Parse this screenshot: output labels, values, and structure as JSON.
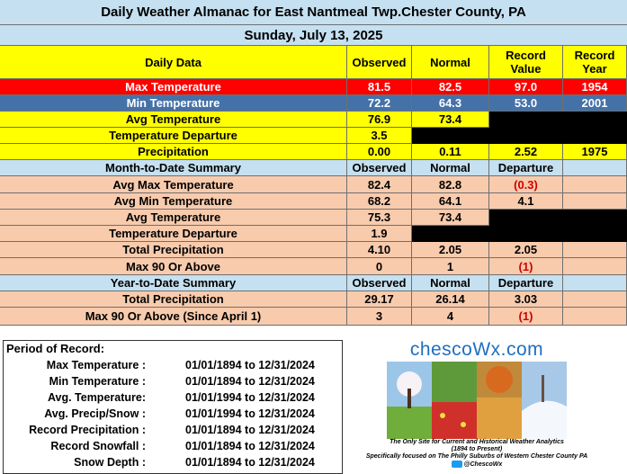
{
  "header": {
    "title": "Daily Weather Almanac for East Nantmeal Twp.Chester County, PA",
    "date": "Sunday, July 13, 2025"
  },
  "daily": {
    "columns": [
      "Daily Data",
      "Observed",
      "Normal",
      "Record Value",
      "Record Year"
    ],
    "rows": [
      {
        "label": "Max Temperature",
        "observed": "81.5",
        "normal": "82.5",
        "record_value": "97.0",
        "record_year": "1954"
      },
      {
        "label": "Min Temperature",
        "observed": "72.2",
        "normal": "64.3",
        "record_value": "53.0",
        "record_year": "2001"
      },
      {
        "label": "Avg Temperature",
        "observed": "76.9",
        "normal": "73.4",
        "record_value": "",
        "record_year": ""
      },
      {
        "label": "Temperature Departure",
        "observed": "3.5",
        "normal": "",
        "record_value": "",
        "record_year": ""
      },
      {
        "label": "Precipitation",
        "observed": "0.00",
        "normal": "0.11",
        "record_value": "2.52",
        "record_year": "1975"
      }
    ]
  },
  "month": {
    "columns": [
      "Month-to-Date Summary",
      "Observed",
      "Normal",
      "Departure"
    ],
    "rows": [
      {
        "label": "Avg Max Temperature",
        "observed": "82.4",
        "normal": "82.8",
        "departure": "(0.3)"
      },
      {
        "label": "Avg Min Temperature",
        "observed": "68.2",
        "normal": "64.1",
        "departure": "4.1"
      },
      {
        "label": "Avg Temperature",
        "observed": "75.3",
        "normal": "73.4",
        "departure": ""
      },
      {
        "label": "Temperature Departure",
        "observed": "1.9",
        "normal": "",
        "departure": ""
      },
      {
        "label": "Total Precipitation",
        "observed": "4.10",
        "normal": "2.05",
        "departure": "2.05"
      },
      {
        "label": "Max 90 Or Above",
        "observed": "0",
        "normal": "1",
        "departure": "(1)"
      }
    ]
  },
  "year": {
    "columns": [
      "Year-to-Date Summary",
      "Observed",
      "Normal",
      "Departure"
    ],
    "rows": [
      {
        "label": "Total Precipitation",
        "observed": "29.17",
        "normal": "26.14",
        "departure": "3.03"
      },
      {
        "label": "Max 90 Or Above (Since April 1)",
        "observed": "3",
        "normal": "4",
        "departure": "(1)"
      }
    ]
  },
  "period": {
    "title": "Period of Record:",
    "rows": [
      {
        "label": "Max Temperature :",
        "value": "01/01/1894 to 12/31/2024"
      },
      {
        "label": "Min Temperature :",
        "value": "01/01/1894 to 12/31/2024"
      },
      {
        "label": "Avg. Temperature:",
        "value": "01/01/1994 to 12/31/2024"
      },
      {
        "label": "Avg. Precip/Snow :",
        "value": "01/01/1994 to 12/31/2024"
      },
      {
        "label": "Record Precipitation :",
        "value": "01/01/1894 to 12/31/2024"
      },
      {
        "label": "Record Snowfall :",
        "value": "01/01/1894 to 12/31/2024"
      },
      {
        "label": "Snow Depth :",
        "value": "01/01/1894 to 12/31/2024"
      }
    ]
  },
  "logo": {
    "site": "chescoWx.com",
    "tagline": "The Only Site for Current and Historical Weather Analytics",
    "years": "(1894 to Present)",
    "focus": "Specifically focused on The Philly Suburbs of Western Chester County PA",
    "handle": "@ChescoWx"
  },
  "colors": {
    "light_blue": "#c5e0f0",
    "yellow": "#ffff00",
    "peach": "#f8cbad",
    "red": "#ff0000",
    "steel_blue": "#4472a8",
    "black": "#000000",
    "departure_red": "#d00000"
  }
}
